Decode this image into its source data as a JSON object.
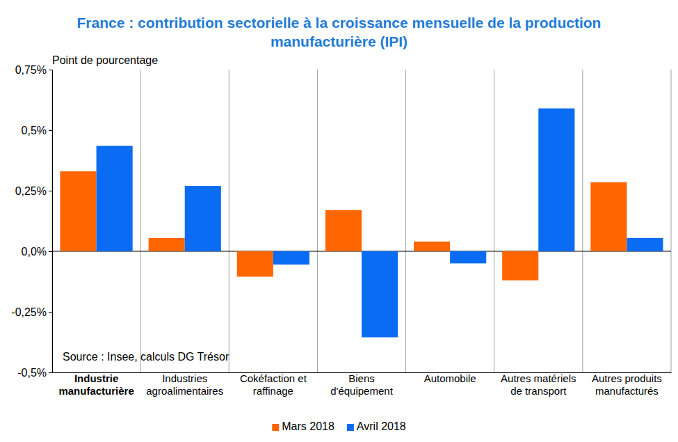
{
  "chart_data": {
    "type": "bar",
    "title": "France : contribution sectorielle à la croissance mensuelle de la production manufacturière (IPI)",
    "y_label": "Point de pourcentage",
    "annotation": "Source : Insee, calculs DG Trésor",
    "categories": [
      "Industrie manufacturière",
      "Industries agroalimentaires",
      "Cokéfaction et raffinage",
      "Biens d'équipement",
      "Automobile",
      "Autres matériels de transport",
      "Autres produits manufacturés"
    ],
    "series": [
      {
        "name": "Mars 2018",
        "color": "#ff6600",
        "values": [
          0.33,
          0.055,
          -0.105,
          0.17,
          0.04,
          -0.12,
          0.285
        ]
      },
      {
        "name": "Avril 2018",
        "color": "#0a6cf2",
        "values": [
          0.435,
          0.27,
          -0.055,
          -0.355,
          -0.05,
          0.59,
          0.055
        ]
      }
    ],
    "ylim": [
      -0.5,
      0.75
    ],
    "yticks": [
      {
        "value": -0.5,
        "label": "-0,5%"
      },
      {
        "value": -0.25,
        "label": "-0,25%"
      },
      {
        "value": 0,
        "label": "0,0%"
      },
      {
        "value": 0.25,
        "label": "0,25%"
      },
      {
        "value": 0.5,
        "label": "0,5%"
      },
      {
        "value": 0.75,
        "label": "0,75%"
      }
    ],
    "grid": true,
    "legend": "bottom"
  }
}
